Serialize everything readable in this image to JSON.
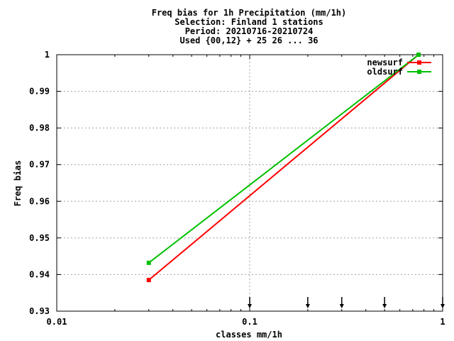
{
  "chart_data": {
    "type": "line",
    "title_lines": [
      "Freq bias  for 1h Precipitation (mm/1h)",
      "Selection: Finland      1 stations",
      "Period: 20210716-20210724",
      "Used {00,12} + 25 26 ... 36"
    ],
    "xlabel": "classes mm/1h",
    "ylabel": "Freq bias",
    "x_scale": "log",
    "xlim": [
      0.01,
      1
    ],
    "ylim": [
      0.93,
      1.0
    ],
    "x_ticks": [
      {
        "value": 0.01,
        "label": "0.01"
      },
      {
        "value": 0.1,
        "label": "0.1"
      },
      {
        "value": 1,
        "label": "1"
      }
    ],
    "y_ticks": [
      {
        "value": 0.93,
        "label": "0.93"
      },
      {
        "value": 0.94,
        "label": "0.94"
      },
      {
        "value": 0.95,
        "label": "0.95"
      },
      {
        "value": 0.96,
        "label": "0.96"
      },
      {
        "value": 0.97,
        "label": "0.97"
      },
      {
        "value": 0.98,
        "label": "0.98"
      },
      {
        "value": 0.99,
        "label": "0.99"
      },
      {
        "value": 1.0,
        "label": "1"
      }
    ],
    "grid": true,
    "legend_position": "top-right",
    "series": [
      {
        "name": "newsurf",
        "color": "#ff0000",
        "x": [
          0.03,
          0.75
        ],
        "y": [
          0.9385,
          1.0
        ]
      },
      {
        "name": "oldsurf",
        "color": "#00c000",
        "x": [
          0.03,
          0.75
        ],
        "y": [
          0.9432,
          1.0
        ]
      }
    ],
    "class_markers_x": [
      0.1,
      0.2,
      0.3,
      0.5,
      1.0
    ]
  }
}
